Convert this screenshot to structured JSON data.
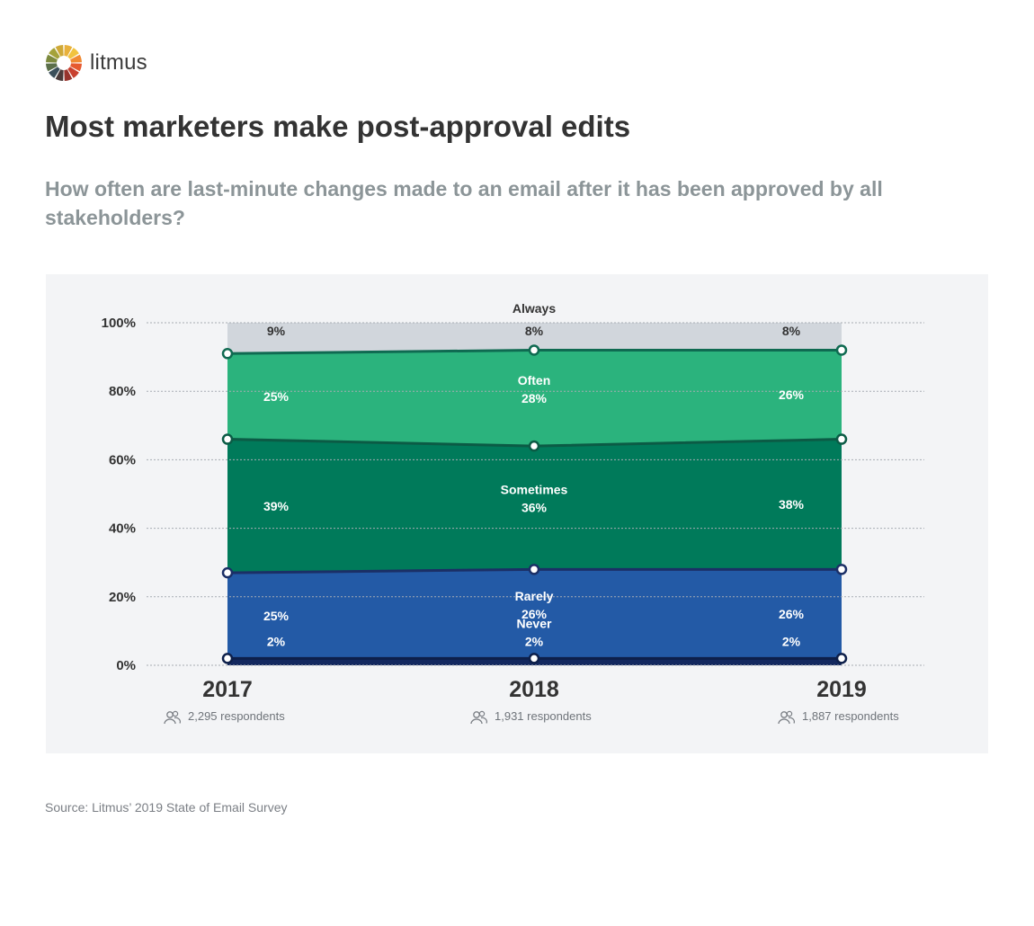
{
  "brand": {
    "name": "litmus"
  },
  "header": {
    "title": "Most marketers make post-approval edits",
    "subtitle": "How often are last-minute changes made to an email after it has been approved by all stakeholders?"
  },
  "footer": {
    "source": "Source: Litmus’ 2019 State of Email Survey"
  },
  "chart_data": {
    "type": "area",
    "stacked": true,
    "x": [
      "2017",
      "2018",
      "2019"
    ],
    "respondents": [
      "2,295 respondents",
      "1,931 respondents",
      "1,887 respondents"
    ],
    "respondents_icon": "people-icon",
    "ylim": [
      0,
      100
    ],
    "yticks": [
      0,
      20,
      40,
      60,
      80,
      100
    ],
    "ytick_labels": [
      "0%",
      "20%",
      "40%",
      "60%",
      "80%",
      "100%"
    ],
    "grid": true,
    "series": [
      {
        "name": "Never",
        "values": [
          2,
          2,
          2
        ],
        "labels": [
          "2%",
          "2%",
          "2%"
        ],
        "fill": "#13285f",
        "line": "#0d1f4a"
      },
      {
        "name": "Rarely",
        "values": [
          25,
          26,
          26
        ],
        "labels": [
          "25%",
          "26%",
          "26%"
        ],
        "fill": "#235aa6",
        "line": "#1b2f66"
      },
      {
        "name": "Sometimes",
        "values": [
          39,
          36,
          38
        ],
        "labels": [
          "39%",
          "36%",
          "38%"
        ],
        "fill": "#007a5a",
        "line": "#0b5b45"
      },
      {
        "name": "Often",
        "values": [
          25,
          28,
          26
        ],
        "labels": [
          "25%",
          "28%",
          "26%"
        ],
        "fill": "#2bb37d",
        "line": "#0f6a51"
      },
      {
        "name": "Always",
        "values": [
          9,
          8,
          8
        ],
        "labels": [
          "9%",
          "8%",
          "8%"
        ],
        "fill": "#d1d6dc",
        "line": null
      }
    ]
  }
}
